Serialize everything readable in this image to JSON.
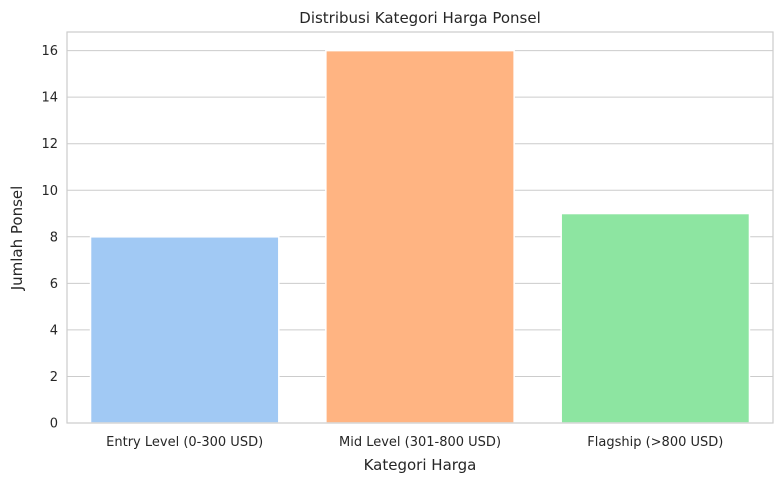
{
  "chart_data": {
    "type": "bar",
    "title": "Distribusi Kategori Harga Ponsel",
    "xlabel": "Kategori Harga",
    "ylabel": "Jumlah Ponsel",
    "categories": [
      "Entry Level (0-300 USD)",
      "Mid Level (301-800 USD)",
      "Flagship (>800 USD)"
    ],
    "values": [
      8,
      16,
      9
    ],
    "colors": [
      "#a1c9f4",
      "#ffb482",
      "#8de5a1"
    ],
    "yticks": [
      0,
      2,
      4,
      6,
      8,
      10,
      12,
      14,
      16
    ],
    "ylim": [
      0,
      16.8
    ],
    "grid": true,
    "legend": "none"
  }
}
